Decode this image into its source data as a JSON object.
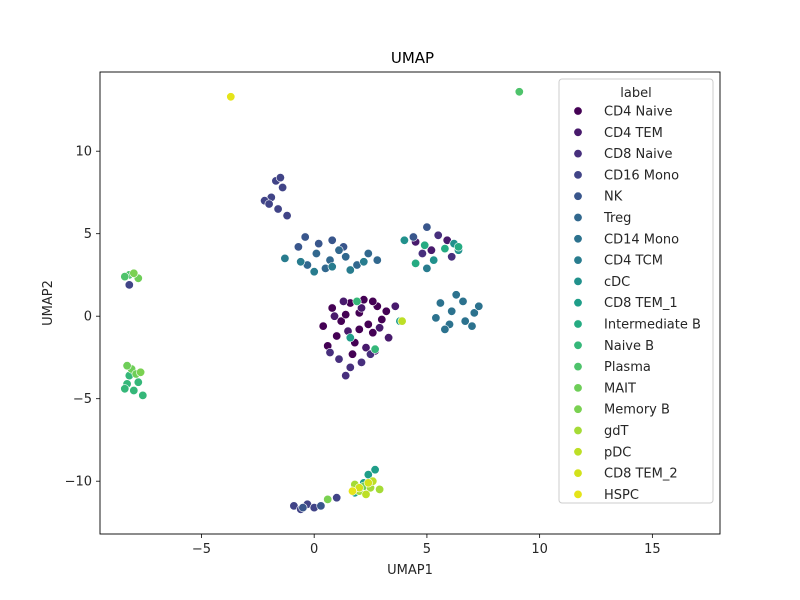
{
  "chart_data": {
    "type": "scatter",
    "title": "UMAP",
    "xlabel": "UMAP1",
    "ylabel": "UMAP2",
    "xlim": [
      -9.5,
      18
    ],
    "ylim": [
      -13.2,
      14.8
    ],
    "xticks": [
      -5,
      0,
      5,
      10,
      15
    ],
    "xtick_labels": [
      "−5",
      "0",
      "5",
      "10",
      "15"
    ],
    "yticks": [
      -10,
      -5,
      0,
      5,
      10
    ],
    "ytick_labels": [
      "−10",
      "−5",
      "0",
      "5",
      "10"
    ],
    "grid": false,
    "legend": {
      "title": "label",
      "placement": "upper right"
    },
    "series": [
      {
        "name": "CD4 Naive",
        "color": "#440154",
        "points": [
          [
            0.8,
            0.5
          ],
          [
            1.2,
            -0.3
          ],
          [
            1.6,
            0.8
          ],
          [
            2.0,
            0.2
          ],
          [
            2.4,
            -0.5
          ],
          [
            2.8,
            0.6
          ],
          [
            1.0,
            -1.2
          ],
          [
            1.8,
            -1.6
          ],
          [
            2.6,
            -1.0
          ],
          [
            0.4,
            -0.6
          ],
          [
            3.0,
            -0.2
          ],
          [
            2.2,
            1.0
          ],
          [
            1.4,
            0.1
          ],
          [
            2.0,
            -0.8
          ],
          [
            0.6,
            -1.8
          ],
          [
            3.2,
            0.3
          ],
          [
            1.7,
            -2.3
          ],
          [
            2.6,
            0.9
          ]
        ]
      },
      {
        "name": "CD4 TEM",
        "color": "#481a6c",
        "points": [
          [
            1.3,
            0.9
          ],
          [
            2.1,
            0.5
          ],
          [
            2.9,
            -0.7
          ],
          [
            1.5,
            -0.9
          ],
          [
            2.3,
            -1.9
          ],
          [
            0.9,
            0.0
          ],
          [
            3.3,
            -1.3
          ],
          [
            2.7,
            -2.1
          ],
          [
            4.5,
            4.5
          ],
          [
            5.2,
            4.0
          ],
          [
            5.9,
            4.6
          ],
          [
            3.6,
            0.6
          ]
        ]
      },
      {
        "name": "CD8 Naive",
        "color": "#472f7d",
        "points": [
          [
            1.1,
            -2.6
          ],
          [
            1.6,
            -3.1
          ],
          [
            2.1,
            -2.8
          ],
          [
            0.7,
            -2.2
          ],
          [
            2.5,
            -2.3
          ],
          [
            1.4,
            -3.6
          ],
          [
            4.8,
            3.8
          ],
          [
            5.5,
            4.9
          ],
          [
            6.1,
            3.6
          ]
        ]
      },
      {
        "name": "CD16 Mono",
        "color": "#414487",
        "points": [
          [
            -1.9,
            7.2
          ],
          [
            -1.6,
            6.5
          ],
          [
            -2.2,
            7.0
          ],
          [
            -1.4,
            7.8
          ],
          [
            -1.7,
            8.2
          ],
          [
            -2.0,
            6.8
          ],
          [
            -1.2,
            6.1
          ],
          [
            -1.5,
            8.4
          ],
          [
            -0.9,
            -11.5
          ],
          [
            -0.6,
            -11.7
          ],
          [
            -0.3,
            -11.4
          ],
          [
            0.0,
            -11.6
          ],
          [
            -8.2,
            1.9
          ],
          [
            1.0,
            -11.0
          ]
        ]
      },
      {
        "name": "NK",
        "color": "#39568c",
        "points": [
          [
            -0.4,
            4.8
          ],
          [
            0.2,
            4.4
          ],
          [
            0.8,
            4.6
          ],
          [
            -0.7,
            4.2
          ],
          [
            1.3,
            4.2
          ],
          [
            -0.5,
            -11.6
          ],
          [
            0.3,
            -11.5
          ],
          [
            4.4,
            4.8
          ],
          [
            5.0,
            5.4
          ]
        ]
      },
      {
        "name": "Treg",
        "color": "#31688e",
        "points": [
          [
            0.1,
            3.8
          ],
          [
            0.7,
            3.4
          ],
          [
            1.4,
            3.6
          ],
          [
            1.9,
            3.1
          ],
          [
            2.4,
            3.8
          ],
          [
            -0.3,
            3.1
          ],
          [
            0.5,
            2.9
          ],
          [
            1.1,
            4.0
          ],
          [
            2.8,
            3.4
          ]
        ]
      },
      {
        "name": "CD14 Mono",
        "color": "#2c728e",
        "points": [
          [
            5.6,
            0.8
          ],
          [
            6.1,
            0.3
          ],
          [
            6.6,
            0.9
          ],
          [
            7.1,
            0.2
          ],
          [
            5.4,
            -0.1
          ],
          [
            6.0,
            -0.5
          ],
          [
            6.7,
            -0.3
          ],
          [
            7.3,
            0.6
          ],
          [
            6.3,
            1.3
          ],
          [
            5.8,
            -0.8
          ],
          [
            7.0,
            -0.6
          ]
        ]
      },
      {
        "name": "CD4 TCM",
        "color": "#287c8e",
        "points": [
          [
            0.0,
            2.7
          ],
          [
            0.8,
            3.0
          ],
          [
            1.6,
            2.8
          ],
          [
            -1.3,
            3.5
          ],
          [
            -0.6,
            3.3
          ],
          [
            2.2,
            3.3
          ],
          [
            5.0,
            2.9
          ]
        ]
      },
      {
        "name": "cDC",
        "color": "#21918c",
        "points": [
          [
            4.0,
            4.6
          ],
          [
            6.2,
            4.4
          ],
          [
            6.4,
            4.0
          ],
          [
            5.3,
            3.4
          ]
        ]
      },
      {
        "name": "CD8 TEM_1",
        "color": "#1f9e89",
        "points": [
          [
            2.4,
            -9.6
          ],
          [
            2.7,
            -9.3
          ],
          [
            2.2,
            -10.1
          ],
          [
            1.8,
            -10.7
          ],
          [
            1.6,
            -1.3
          ],
          [
            3.8,
            -0.3
          ]
        ]
      },
      {
        "name": "Intermediate B",
        "color": "#25ab82",
        "points": [
          [
            4.9,
            4.3
          ],
          [
            5.8,
            4.1
          ],
          [
            4.5,
            3.2
          ],
          [
            6.4,
            4.2
          ]
        ]
      },
      {
        "name": "Naive B",
        "color": "#35b779",
        "points": [
          [
            -8.3,
            -4.1
          ],
          [
            -8.0,
            -4.5
          ],
          [
            -7.8,
            -4.0
          ],
          [
            -8.2,
            -3.6
          ],
          [
            -7.6,
            -4.8
          ],
          [
            -8.4,
            -4.4
          ],
          [
            1.9,
            0.9
          ],
          [
            2.7,
            -2.0
          ]
        ]
      },
      {
        "name": "Plasma",
        "color": "#4ec36b",
        "points": [
          [
            9.1,
            13.6
          ],
          [
            -8.2,
            2.5
          ],
          [
            -8.4,
            2.4
          ]
        ]
      },
      {
        "name": "MAIT",
        "color": "#6ece58",
        "points": [
          [
            -8.1,
            -3.2
          ],
          [
            -7.9,
            -3.5
          ],
          [
            -8.3,
            -3.0
          ],
          [
            -7.8,
            2.3
          ],
          [
            2.2,
            -10.3
          ]
        ]
      },
      {
        "name": "Memory B",
        "color": "#7ad151",
        "points": [
          [
            -8.0,
            2.6
          ],
          [
            -7.7,
            -3.4
          ],
          [
            0.6,
            -11.1
          ]
        ]
      },
      {
        "name": "gdT",
        "color": "#a5db36",
        "points": [
          [
            2.0,
            -10.6
          ],
          [
            2.5,
            -10.4
          ],
          [
            1.8,
            -10.2
          ],
          [
            2.9,
            -10.5
          ]
        ]
      },
      {
        "name": "pDC",
        "color": "#bddf26",
        "points": [
          [
            3.9,
            -0.3
          ],
          [
            2.3,
            -10.8
          ],
          [
            2.6,
            -10.0
          ]
        ]
      },
      {
        "name": "CD8 TEM_2",
        "color": "#d2e21b",
        "points": [
          [
            2.0,
            -10.4
          ],
          [
            2.4,
            -10.1
          ]
        ]
      },
      {
        "name": "HSPC",
        "color": "#e5e419",
        "points": [
          [
            -3.7,
            13.3
          ],
          [
            1.7,
            -10.6
          ]
        ]
      }
    ]
  }
}
